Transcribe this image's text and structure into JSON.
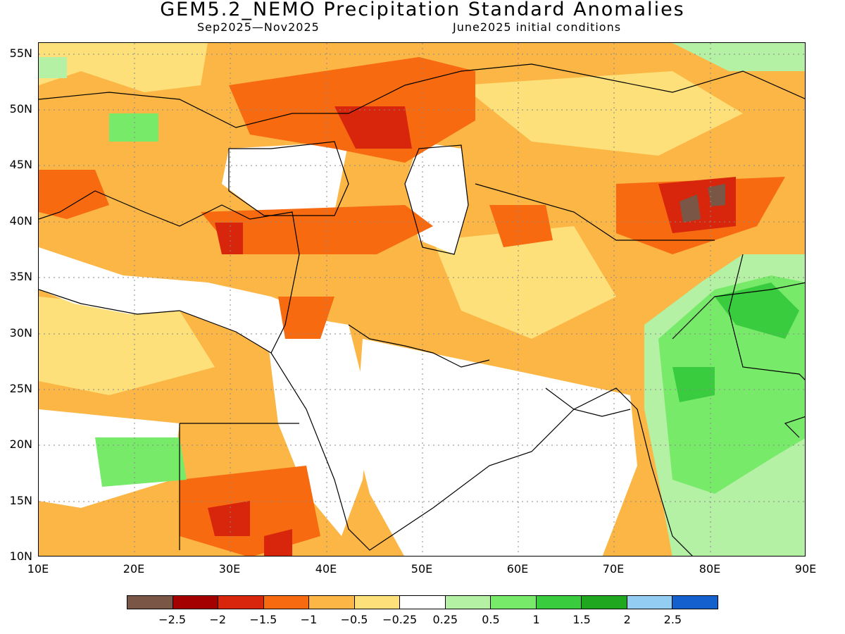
{
  "title": "GEM5.2_NEMO Precipitation Standard Anomalies",
  "subtitle_left": "Sep2025—Nov2025",
  "subtitle_right": "June2025 initial conditions",
  "lat_labels": [
    "55N",
    "50N",
    "45N",
    "40N",
    "35N",
    "30N",
    "25N",
    "20N",
    "15N",
    "10N"
  ],
  "lon_labels": [
    "10E",
    "20E",
    "30E",
    "40E",
    "50E",
    "60E",
    "70E",
    "80E",
    "90E"
  ],
  "colorbar": {
    "colors": [
      "#7a5646",
      "#a50000",
      "#d8260c",
      "#f86a10",
      "#fbb645",
      "#fde07a",
      "#ffffff",
      "#b4f1a4",
      "#78ea6a",
      "#39cc3e",
      "#1fa81f",
      "#93cdf1",
      "#1560cf"
    ],
    "labels": [
      "−2.5",
      "−2",
      "−1.5",
      "−1",
      "−0.5",
      "−0.25",
      "0.25",
      "0.5",
      "1",
      "1.5",
      "2",
      "2.5"
    ]
  },
  "map": {
    "region": "Middle East, Central Asia, South Asia",
    "extent": {
      "lon_min": 10,
      "lon_max": 90,
      "lat_min": 10,
      "lat_max": 56
    },
    "grid": true,
    "dominant_anomaly": "below normal (orange/red) over Middle East and Central Asia; above normal (green) over India"
  }
}
